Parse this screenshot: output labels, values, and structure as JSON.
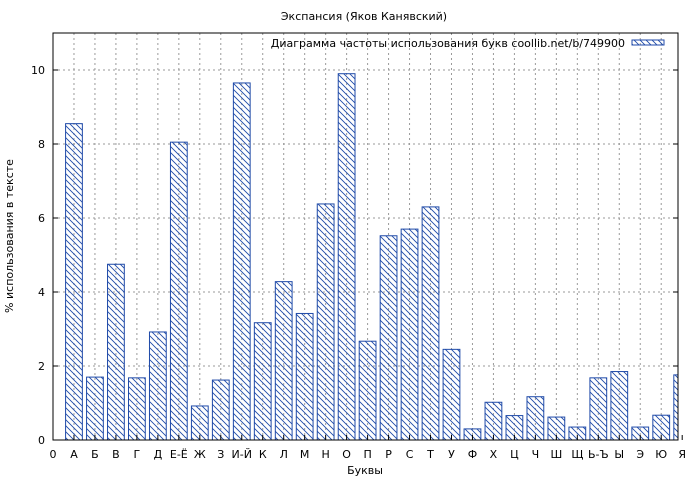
{
  "chart_data": {
    "type": "bar",
    "title": "Экспансия (Яков Канявский)",
    "xlabel": "Буквы",
    "ylabel": "% использования в тексте",
    "legend": {
      "label": "Диаграмма частоты использования букв coollib.net/b/749900",
      "position": "top-right"
    },
    "x_first_tick": "0",
    "categories": [
      "А",
      "Б",
      "В",
      "Г",
      "Д",
      "Е-Ё",
      "Ж",
      "З",
      "И-Й",
      "К",
      "Л",
      "М",
      "Н",
      "О",
      "П",
      "Р",
      "С",
      "Т",
      "У",
      "Ф",
      "Х",
      "Ц",
      "Ч",
      "Ш",
      "Щ",
      "Ь-Ъ",
      "Ы",
      "Э",
      "Ю",
      "Я"
    ],
    "values": [
      8.55,
      1.7,
      4.75,
      1.68,
      2.92,
      8.05,
      0.92,
      1.62,
      9.65,
      3.17,
      4.28,
      3.42,
      6.38,
      9.9,
      2.67,
      5.52,
      5.7,
      6.3,
      2.45,
      0.3,
      1.02,
      0.66,
      1.17,
      0.62,
      0.35,
      1.68,
      1.85,
      0.35,
      0.67,
      1.76
    ],
    "ylim": [
      0,
      11
    ],
    "yticks": [
      0,
      2,
      4,
      6,
      8,
      10
    ],
    "grid": true,
    "bar_color": "#1f4aa8",
    "fill_pattern": "diagonal-hatch"
  }
}
